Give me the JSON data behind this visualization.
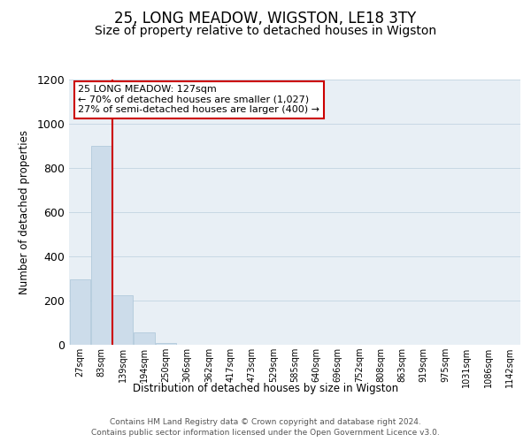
{
  "title": "25, LONG MEADOW, WIGSTON, LE18 3TY",
  "subtitle": "Size of property relative to detached houses in Wigston",
  "xlabel": "Distribution of detached houses by size in Wigston",
  "ylabel": "Number of detached properties",
  "bin_labels": [
    "27sqm",
    "83sqm",
    "139sqm",
    "194sqm",
    "250sqm",
    "306sqm",
    "362sqm",
    "417sqm",
    "473sqm",
    "529sqm",
    "585sqm",
    "640sqm",
    "696sqm",
    "752sqm",
    "808sqm",
    "863sqm",
    "919sqm",
    "975sqm",
    "1031sqm",
    "1086sqm",
    "1142sqm"
  ],
  "bar_values": [
    295,
    900,
    225,
    57,
    10,
    0,
    0,
    0,
    0,
    0,
    0,
    0,
    0,
    0,
    0,
    0,
    0,
    0,
    0,
    0,
    0
  ],
  "bar_color": "#ccdcea",
  "bar_edgecolor": "#aac4d8",
  "property_line_color": "#cc0000",
  "ylim": [
    0,
    1200
  ],
  "yticks": [
    0,
    200,
    400,
    600,
    800,
    1000,
    1200
  ],
  "annotation_title": "25 LONG MEADOW: 127sqm",
  "annotation_line1": "← 70% of detached houses are smaller (1,027)",
  "annotation_line2": "27% of semi-detached houses are larger (400) →",
  "annotation_box_facecolor": "#ffffff",
  "annotation_box_edgecolor": "#cc0000",
  "footer_line1": "Contains HM Land Registry data © Crown copyright and database right 2024.",
  "footer_line2": "Contains public sector information licensed under the Open Government Licence v3.0.",
  "background_color": "#ffffff",
  "axes_facecolor": "#e8eff5",
  "grid_color": "#c8d8e4",
  "title_fontsize": 12,
  "subtitle_fontsize": 10
}
